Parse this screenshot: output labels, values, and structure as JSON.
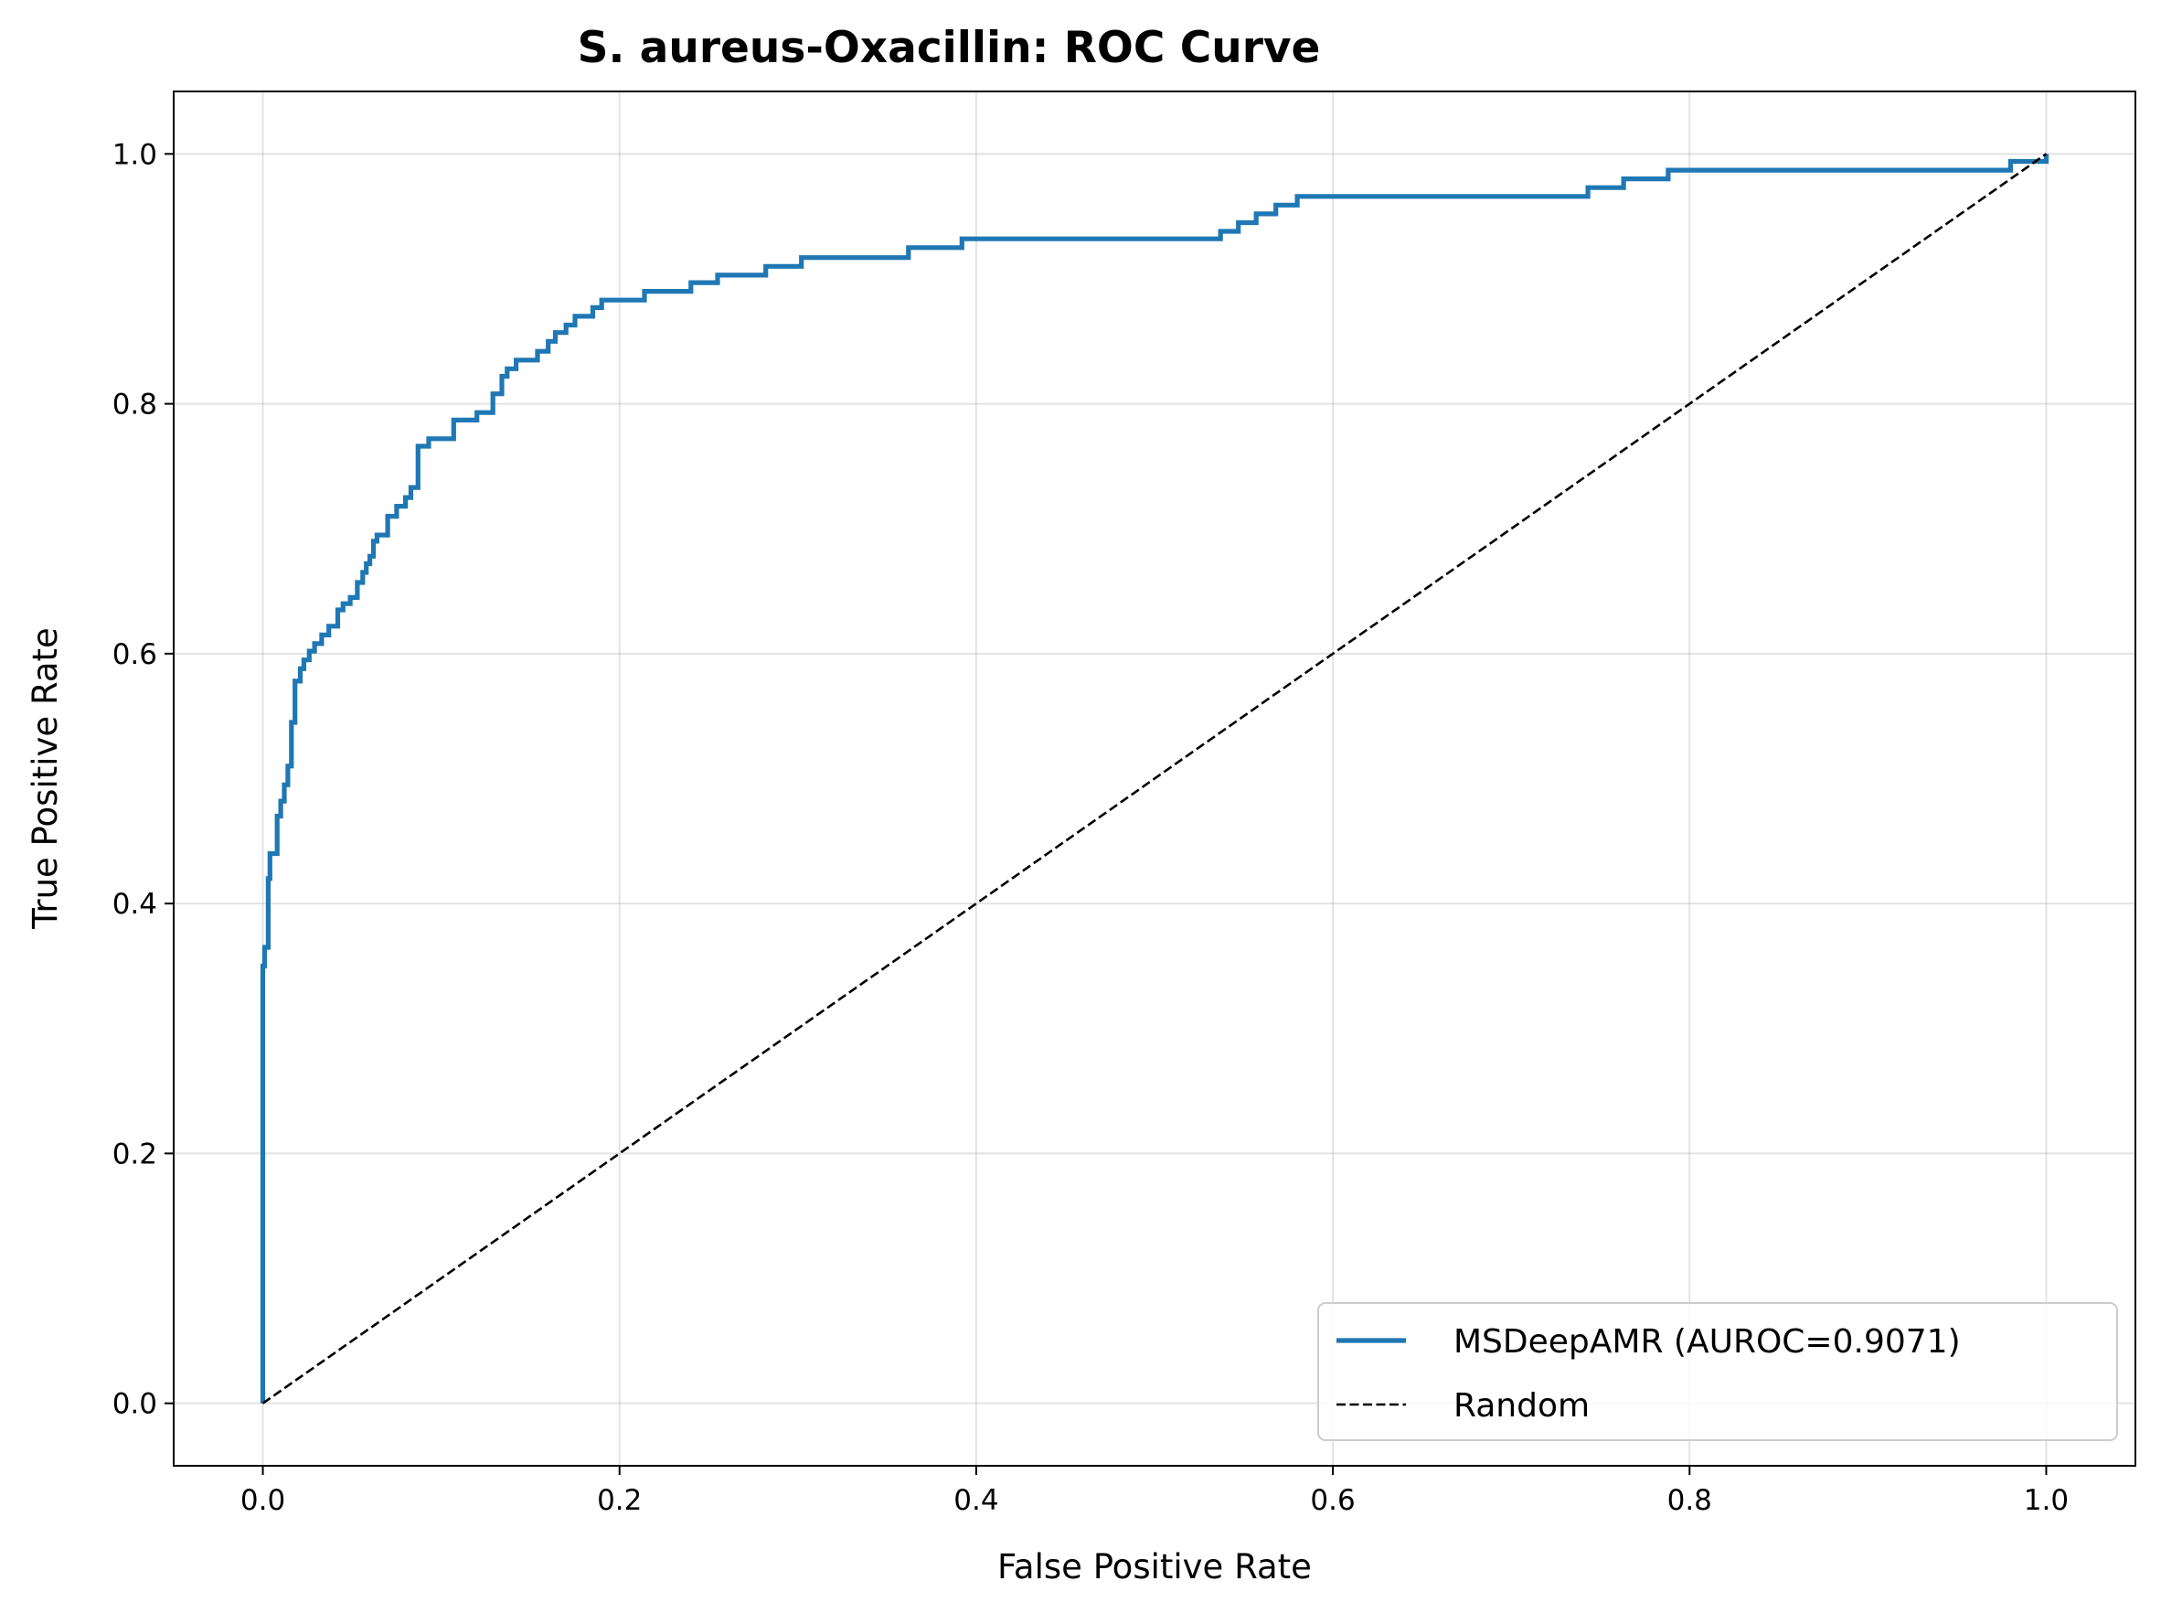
{
  "chart_data": {
    "type": "line",
    "title": "S. aureus-Oxacillin: ROC Curve",
    "xlabel": "False Positive Rate",
    "ylabel": "True Positive Rate",
    "xlim": [
      -0.05,
      1.05
    ],
    "ylim": [
      -0.05,
      1.05
    ],
    "xticks": [
      "0.0",
      "0.2",
      "0.4",
      "0.6",
      "0.8",
      "1.0"
    ],
    "yticks": [
      "0.0",
      "0.2",
      "0.4",
      "0.6",
      "0.8",
      "1.0"
    ],
    "grid": true,
    "legend_position": "lower-right",
    "series": [
      {
        "name": "MSDeepAMR (AUROC=0.9071)",
        "color": "#1f77b4",
        "style": "solid",
        "x": [
          0,
          0,
          0.001,
          0.001,
          0.003,
          0.003,
          0.004,
          0.004,
          0.008,
          0.008,
          0.01,
          0.01,
          0.012,
          0.012,
          0.014,
          0.014,
          0.016,
          0.016,
          0.018,
          0.018,
          0.021,
          0.021,
          0.023,
          0.023,
          0.026,
          0.026,
          0.029,
          0.029,
          0.033,
          0.033,
          0.037,
          0.037,
          0.042,
          0.042,
          0.045,
          0.045,
          0.049,
          0.049,
          0.053,
          0.053,
          0.056,
          0.056,
          0.058,
          0.058,
          0.06,
          0.06,
          0.062,
          0.062,
          0.064,
          0.064,
          0.07,
          0.07,
          0.075,
          0.075,
          0.08,
          0.08,
          0.083,
          0.083,
          0.087,
          0.087,
          0.093,
          0.093,
          0.107,
          0.107,
          0.12,
          0.12,
          0.129,
          0.129,
          0.134,
          0.134,
          0.137,
          0.137,
          0.142,
          0.142,
          0.154,
          0.154,
          0.16,
          0.16,
          0.164,
          0.164,
          0.17,
          0.17,
          0.175,
          0.175,
          0.185,
          0.185,
          0.19,
          0.19,
          0.214,
          0.214,
          0.24,
          0.24,
          0.255,
          0.255,
          0.282,
          0.282,
          0.302,
          0.302,
          0.362,
          0.362,
          0.392,
          0.392,
          0.537,
          0.537,
          0.547,
          0.547,
          0.557,
          0.557,
          0.568,
          0.568,
          0.58,
          0.58,
          0.743,
          0.743,
          0.763,
          0.763,
          0.788,
          0.788,
          0.98,
          0.98,
          1.0,
          1.0
        ],
        "y": [
          0,
          0.35,
          0.35,
          0.365,
          0.365,
          0.42,
          0.42,
          0.44,
          0.44,
          0.47,
          0.47,
          0.482,
          0.482,
          0.495,
          0.495,
          0.51,
          0.51,
          0.545,
          0.545,
          0.578,
          0.578,
          0.588,
          0.588,
          0.595,
          0.595,
          0.602,
          0.602,
          0.608,
          0.608,
          0.615,
          0.615,
          0.622,
          0.622,
          0.635,
          0.635,
          0.64,
          0.64,
          0.645,
          0.645,
          0.657,
          0.657,
          0.665,
          0.665,
          0.672,
          0.672,
          0.678,
          0.678,
          0.69,
          0.69,
          0.695,
          0.695,
          0.71,
          0.71,
          0.718,
          0.718,
          0.725,
          0.725,
          0.733,
          0.733,
          0.766,
          0.766,
          0.772,
          0.772,
          0.787,
          0.787,
          0.793,
          0.793,
          0.808,
          0.808,
          0.822,
          0.822,
          0.828,
          0.828,
          0.835,
          0.835,
          0.842,
          0.842,
          0.85,
          0.85,
          0.857,
          0.857,
          0.863,
          0.863,
          0.87,
          0.87,
          0.877,
          0.877,
          0.883,
          0.883,
          0.89,
          0.89,
          0.897,
          0.897,
          0.903,
          0.903,
          0.91,
          0.91,
          0.917,
          0.917,
          0.925,
          0.925,
          0.932,
          0.932,
          0.938,
          0.938,
          0.945,
          0.945,
          0.952,
          0.952,
          0.959,
          0.959,
          0.966,
          0.966,
          0.973,
          0.973,
          0.98,
          0.98,
          0.987,
          0.987,
          0.994,
          0.994,
          1.0
        ]
      },
      {
        "name": "Random",
        "color": "#000000",
        "style": "dashed",
        "x": [
          0,
          1
        ],
        "y": [
          0,
          1
        ]
      }
    ]
  }
}
